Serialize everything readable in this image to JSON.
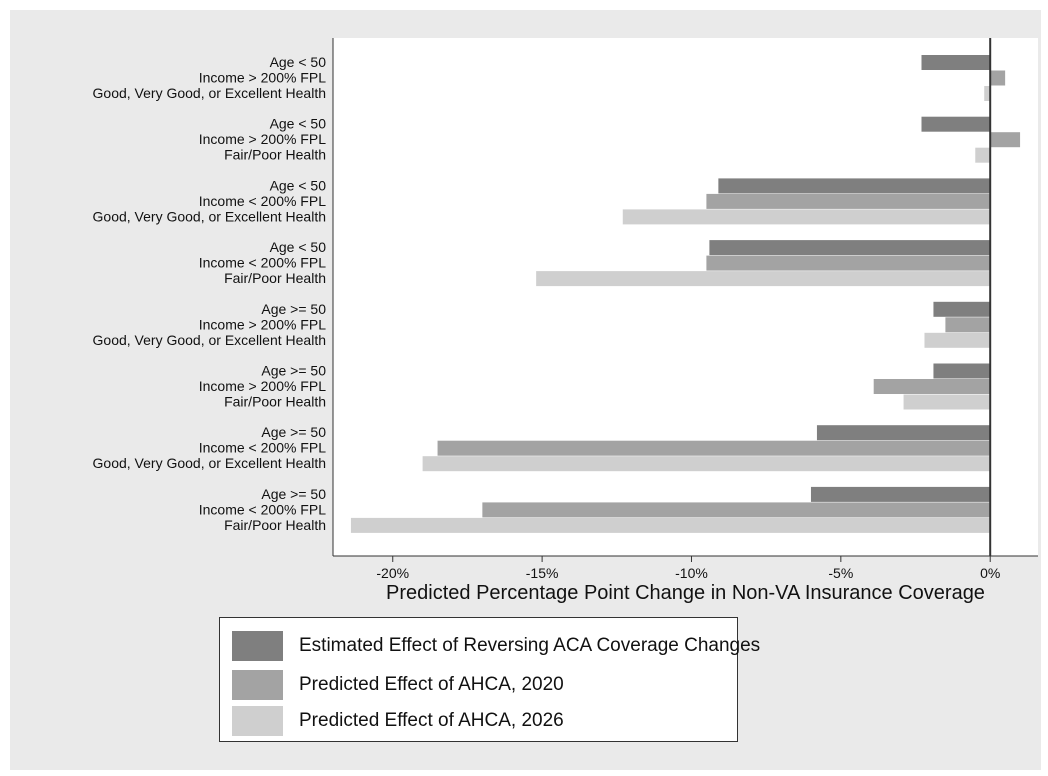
{
  "chart_data": {
    "type": "bar",
    "orientation": "horizontal",
    "xlabel": "Predicted Percentage Point Change in Non-VA Insurance Coverage",
    "xlim": [
      -22,
      1.6
    ],
    "xticks": [
      -20,
      -15,
      -10,
      -5,
      0
    ],
    "xtick_labels": [
      "-20%",
      "-15%",
      "-10%",
      "-5%",
      "0%"
    ],
    "categories": [
      [
        "Age < 50",
        "Income > 200% FPL",
        "Good, Very Good, or Excellent Health"
      ],
      [
        "Age < 50",
        "Income > 200% FPL",
        "Fair/Poor Health"
      ],
      [
        "Age < 50",
        "Income < 200% FPL",
        "Good, Very Good, or Excellent Health"
      ],
      [
        "Age < 50",
        "Income < 200% FPL",
        "Fair/Poor Health"
      ],
      [
        "Age >= 50",
        "Income > 200% FPL",
        "Good, Very Good, or Excellent Health"
      ],
      [
        "Age >= 50",
        "Income > 200% FPL",
        "Fair/Poor Health"
      ],
      [
        "Age >= 50",
        "Income < 200% FPL",
        "Good, Very Good, or Excellent Health"
      ],
      [
        "Age >= 50",
        "Income < 200% FPL",
        "Fair/Poor Health"
      ]
    ],
    "series": [
      {
        "name": "Estimated Effect of Reversing ACA Coverage Changes",
        "color": "#7f7f7f",
        "values": [
          -2.3,
          -2.3,
          -9.1,
          -9.4,
          -1.9,
          -1.9,
          -5.8,
          -6.0
        ]
      },
      {
        "name": "Predicted Effect of AHCA, 2020",
        "color": "#a3a3a3",
        "values": [
          0.5,
          1.0,
          -9.5,
          -9.5,
          -1.5,
          -3.9,
          -18.5,
          -17.0
        ]
      },
      {
        "name": "Predicted Effect of AHCA, 2026",
        "color": "#cfcfcf",
        "values": [
          -0.2,
          -0.5,
          -12.3,
          -15.2,
          -2.2,
          -2.9,
          -19.0,
          -21.4
        ]
      }
    ],
    "legend_position": "bottom",
    "grid": false
  }
}
